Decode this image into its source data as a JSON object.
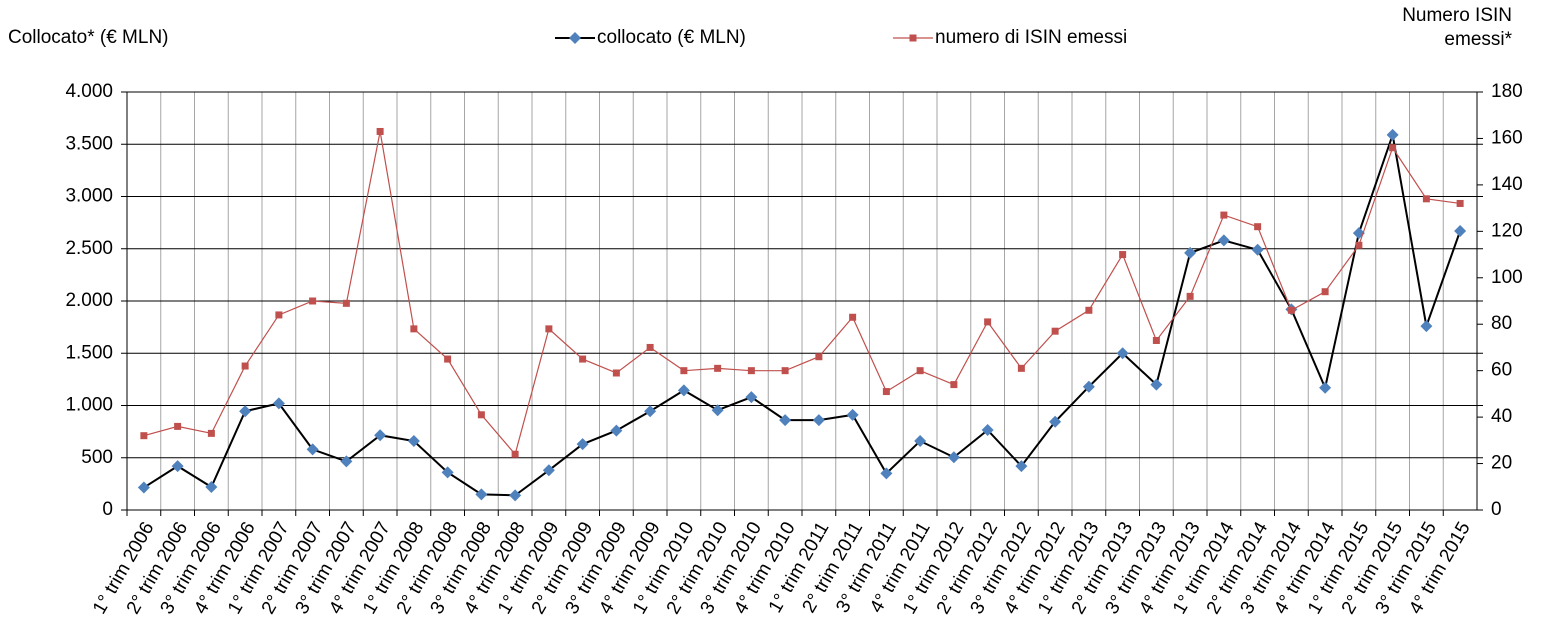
{
  "chart_data": {
    "type": "line",
    "y_label": "Collocato* (€ MLN)",
    "y2_label": "Numero ISIN emessi*",
    "categories": [
      "1° trim 2006",
      "2° trim 2006",
      "3° trim 2006",
      "4° trim 2006",
      "1° trim 2007",
      "2° trim 2007",
      "3° trim 2007",
      "4° trim 2007",
      "1° trim 2008",
      "2° trim 2008",
      "3° trim 2008",
      "4° trim 2008",
      "1° trim 2009",
      "2° trim 2009",
      "3° trim 2009",
      "4° trim 2009",
      "1° trim 2010",
      "2° trim 2010",
      "3° trim 2010",
      "4° trim 2010",
      "1° trim 2011",
      "2° trim 2011",
      "3° trim 2011",
      "4° trim 2011",
      "1° trim 2012",
      "2° trim 2012",
      "3° trim 2012",
      "4° trim 2012",
      "1° trim 2013",
      "2° trim 2013",
      "3° trim 2013",
      "4° trim 2013",
      "1° trim 2014",
      "2° trim 2014",
      "3° trim 2014",
      "4° trim 2014",
      "1° trim 2015",
      "2° trim 2015",
      "3° trim 2015",
      "4° trim 2015"
    ],
    "series": [
      {
        "name": "collocato (€ MLN)",
        "color": "#4f81bd",
        "line_color": "#000000",
        "marker": "diamond",
        "axis": "y",
        "values": [
          215,
          420,
          220,
          945,
          1020,
          580,
          465,
          715,
          660,
          360,
          150,
          140,
          380,
          630,
          760,
          945,
          1145,
          955,
          1080,
          860,
          860,
          910,
          350,
          660,
          505,
          765,
          420,
          845,
          1180,
          1500,
          1200,
          2460,
          2580,
          2490,
          1920,
          1170,
          2650,
          3590,
          1760,
          2670
        ]
      },
      {
        "name": "numero di ISIN emessi",
        "color": "#c0504d",
        "line_color": "#c0504d",
        "marker": "square",
        "axis": "y2",
        "values": [
          32,
          36,
          33,
          62,
          84,
          90,
          89,
          163,
          78,
          65,
          41,
          24,
          78,
          65,
          59,
          70,
          60,
          61,
          60,
          60,
          66,
          83,
          51,
          60,
          54,
          81,
          61,
          77,
          86,
          110,
          73,
          92,
          127,
          122,
          86,
          94,
          114,
          156,
          134,
          132
        ]
      }
    ],
    "ylim": [
      0,
      4000
    ],
    "yticks": [
      0,
      500,
      {
        "value": 1000,
        "label": "1.000"
      },
      {
        "value": 1500,
        "label": "1.500"
      },
      {
        "value": 2000,
        "label": "2.000"
      },
      {
        "value": 2500,
        "label": "2.500"
      },
      {
        "value": 3000,
        "label": "3.000"
      },
      {
        "value": 3500,
        "label": "3.500"
      },
      {
        "value": 4000,
        "label": "4.000"
      }
    ],
    "y2lim": [
      0,
      180
    ],
    "y2ticks": [
      0,
      20,
      40,
      60,
      80,
      100,
      120,
      140,
      160,
      180
    ],
    "grid": true,
    "legend": "top"
  }
}
